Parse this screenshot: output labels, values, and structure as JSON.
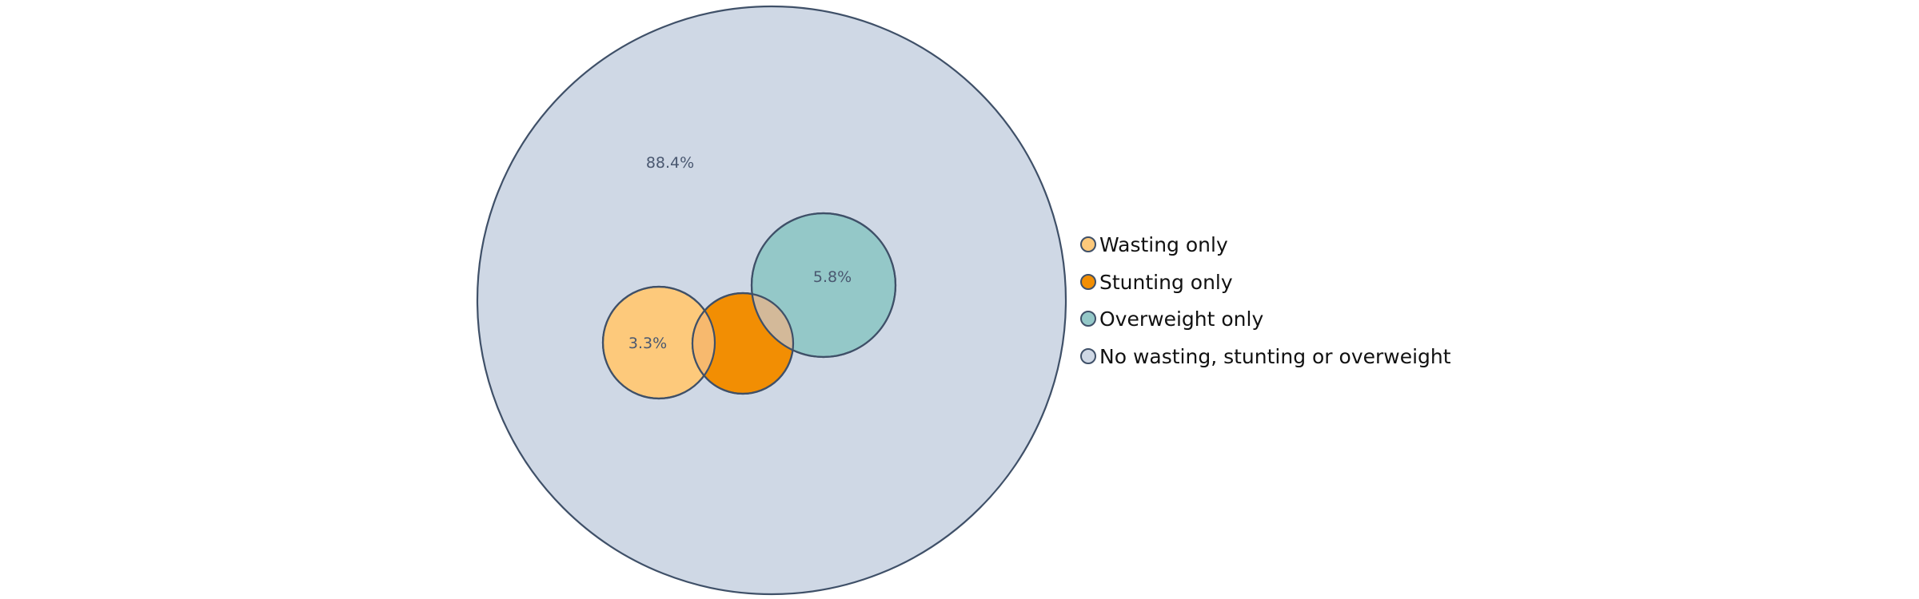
{
  "venn": {
    "sets": [
      {
        "key": "outer",
        "name": "No wasting, stunting or overweight",
        "color": "#cfd8e5",
        "value": 88.4,
        "label": "88.4%"
      },
      {
        "key": "wasting",
        "name": "Wasting only",
        "color": "#fdc97b",
        "value": 3.3,
        "label": "3.3%"
      },
      {
        "key": "stunting",
        "name": "Stunting only",
        "color": "#f28e03",
        "label": ""
      },
      {
        "key": "overweight",
        "name": "Overweight only",
        "color": "#94c8c8",
        "value": 5.8,
        "label": "5.8%"
      }
    ],
    "overlap_colors": {
      "wasting_stunting": "#f7b96e",
      "stunting_overweight": "#d3b999"
    },
    "outline_color": "#3f5068"
  },
  "legend": {
    "position": "right",
    "items": [
      {
        "label": "Wasting only",
        "color": "#fdc97b"
      },
      {
        "label": "Stunting only",
        "color": "#f28e03"
      },
      {
        "label": "Overweight only",
        "color": "#94c8c8"
      },
      {
        "label": "No wasting, stunting or overweight",
        "color": "#cfd8e5"
      }
    ]
  }
}
